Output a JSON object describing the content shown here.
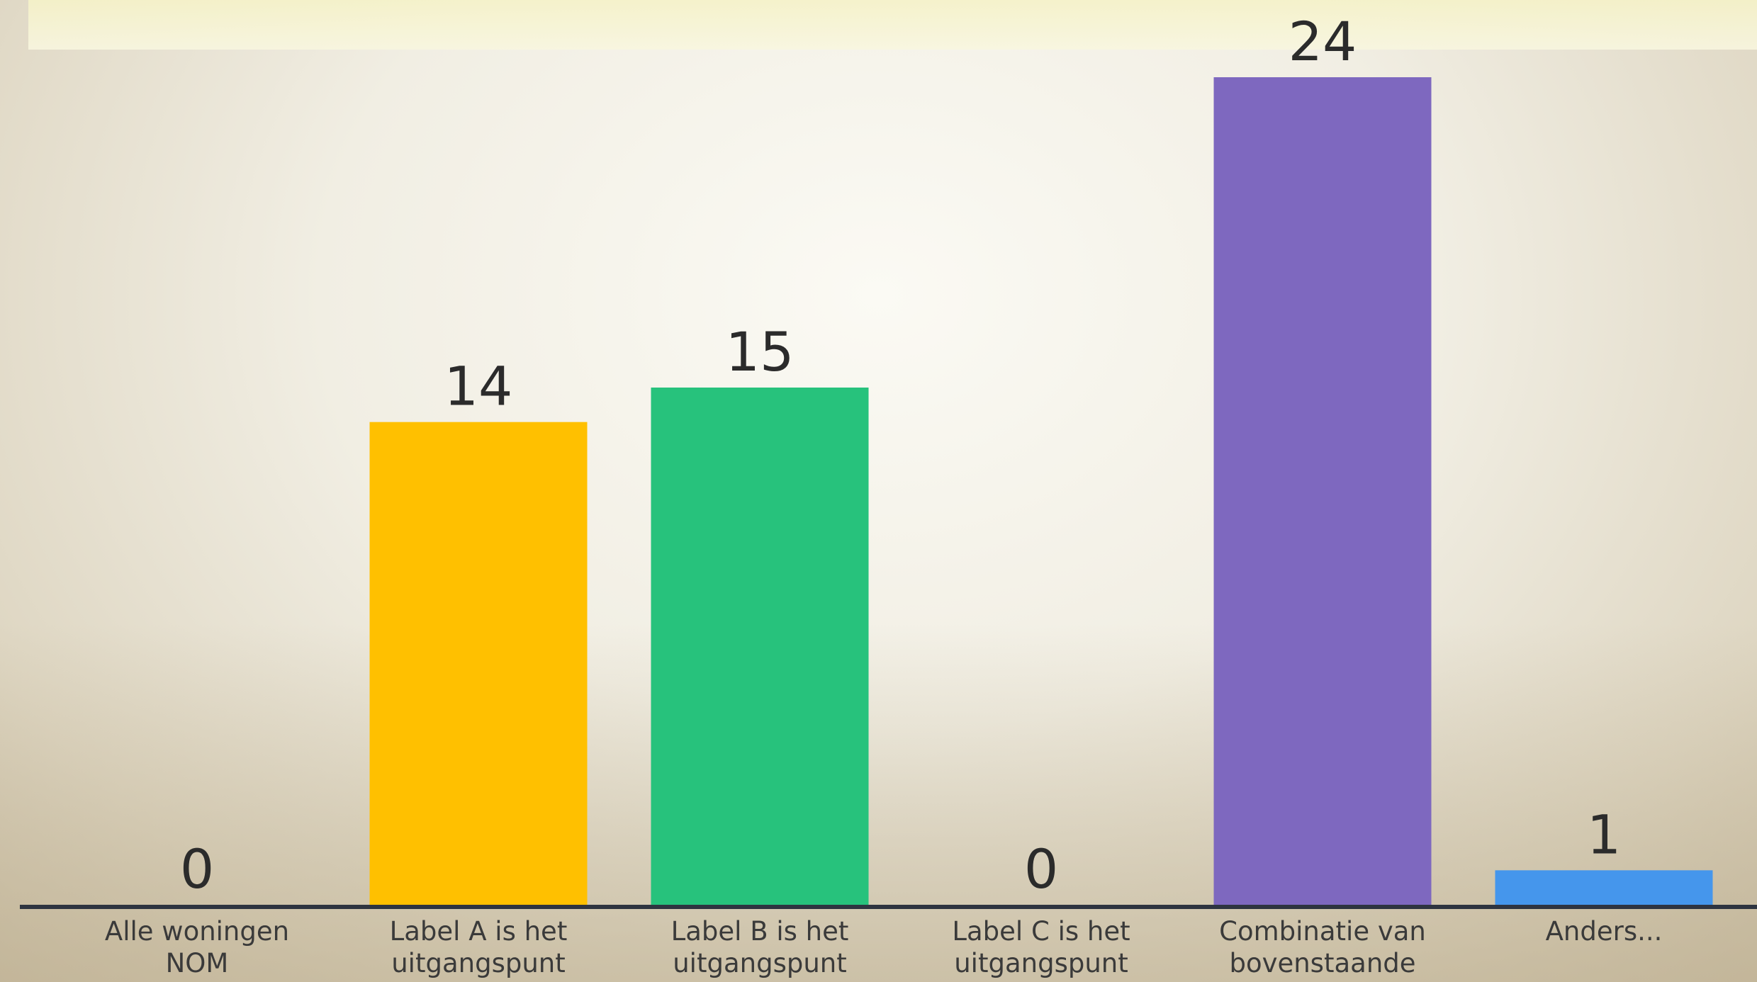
{
  "chart_data": {
    "type": "bar",
    "categories": [
      "Alle woningen NOM",
      "Label A is het uitgangspunt",
      "Label B is het uitgangspunt",
      "Label C is het uitgangspunt",
      "Combinatie van bovenstaande",
      "Anders..."
    ],
    "values": [
      0,
      14,
      15,
      0,
      24,
      1
    ],
    "colors": [
      null,
      "#ffc000",
      "#27c27c",
      null,
      "#7e68bf",
      "#4596ec"
    ]
  }
}
